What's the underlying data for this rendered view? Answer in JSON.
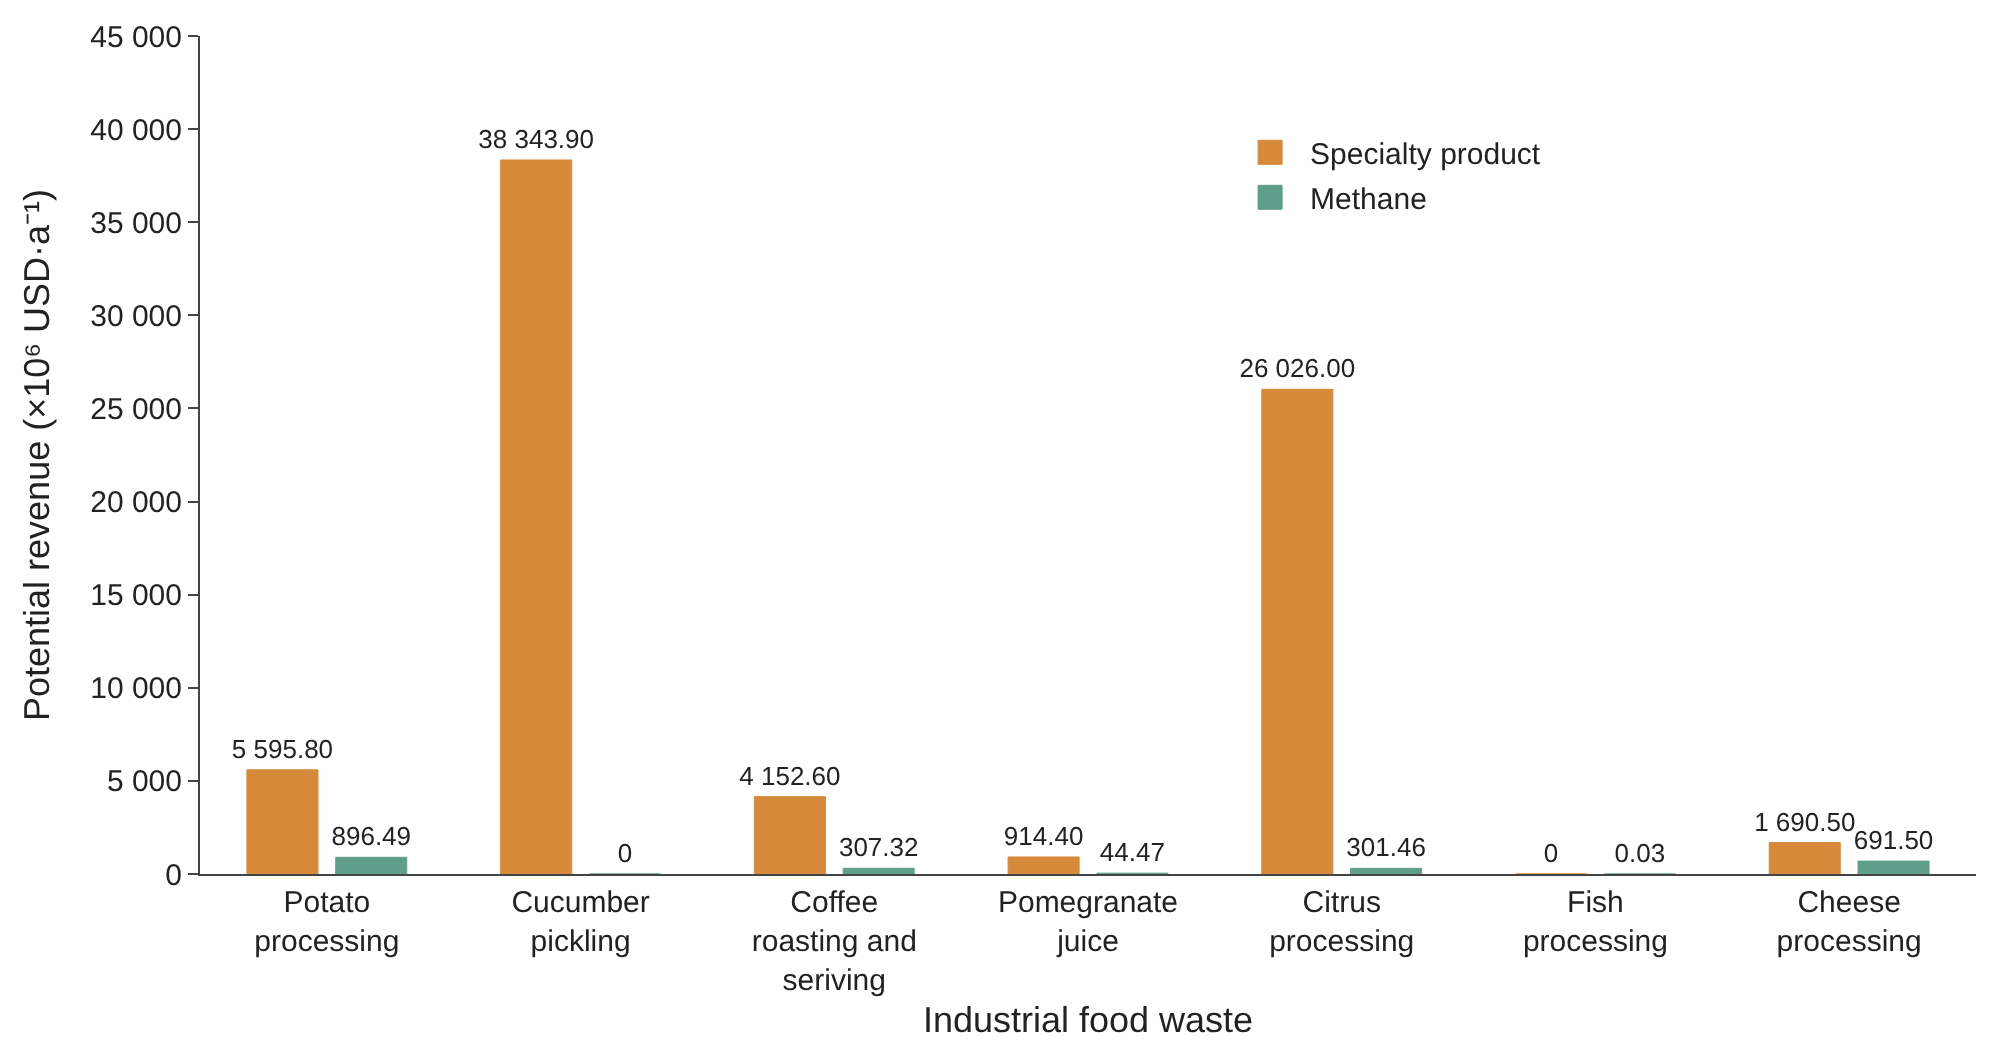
{
  "chart_data": {
    "type": "bar",
    "xlabel": "Industrial food waste",
    "ylabel": "Potential revenue (×10⁶ USD·a⁻¹)",
    "categories": [
      "Potato processing",
      "Cucumber pickling",
      "Coffee roasting and seriving",
      "Pomegranate juice",
      "Citrus processing",
      "Fish processing",
      "Cheese processing"
    ],
    "series": [
      {
        "name": "Specialty product",
        "color": "#d68a3a",
        "values": [
          5595.8,
          38343.9,
          4152.6,
          914.4,
          26026.0,
          0,
          1690.5
        ],
        "value_labels": [
          "5 595.80",
          "38 343.90",
          "4 152.60",
          "914.40",
          "26 026.00",
          "0",
          "1 690.50"
        ]
      },
      {
        "name": "Methane",
        "color": "#5f9e8a",
        "values": [
          896.49,
          0,
          307.32,
          44.47,
          301.46,
          0.03,
          691.5
        ],
        "value_labels": [
          "896.49",
          "0",
          "307.32",
          "44.47",
          "301.46",
          "0.03",
          "691.50"
        ]
      }
    ],
    "ylim": [
      0,
      45000
    ],
    "yticks": [
      {
        "value": 0,
        "label": "0"
      },
      {
        "value": 5000,
        "label": "5 000"
      },
      {
        "value": 10000,
        "label": "10 000"
      },
      {
        "value": 15000,
        "label": "15 000"
      },
      {
        "value": 20000,
        "label": "20 000"
      },
      {
        "value": 25000,
        "label": "25 000"
      },
      {
        "value": 30000,
        "label": "30 000"
      },
      {
        "value": 35000,
        "label": "35 000"
      },
      {
        "value": 40000,
        "label": "40 000"
      },
      {
        "value": 45000,
        "label": "45 000"
      }
    ],
    "legend": "top right"
  }
}
